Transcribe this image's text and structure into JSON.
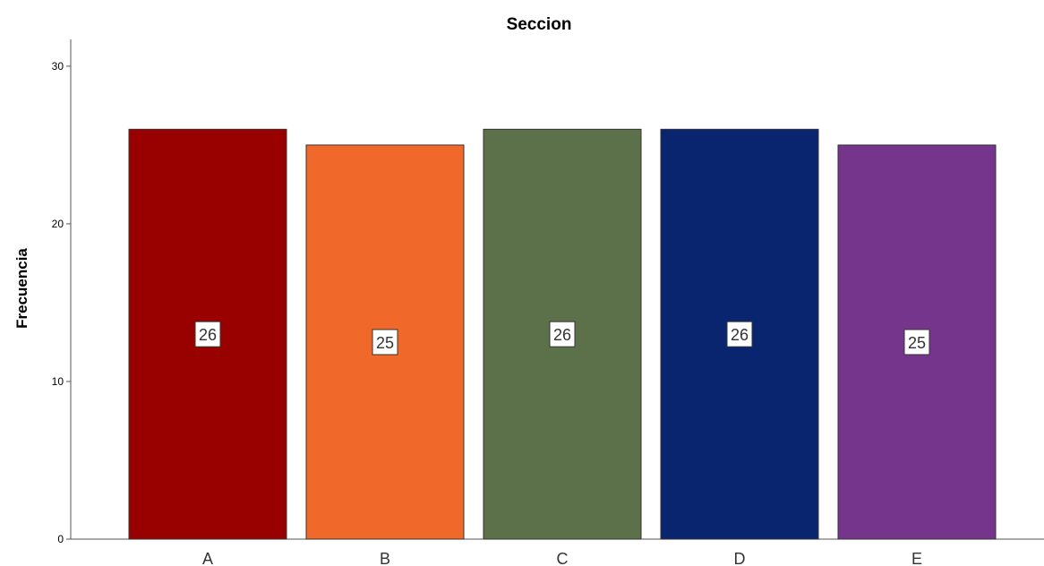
{
  "chart_data": {
    "type": "bar",
    "title": "Seccion",
    "xlabel": "",
    "ylabel": "Frecuencia",
    "categories": [
      "A",
      "B",
      "C",
      "D",
      "E"
    ],
    "values": [
      26,
      25,
      26,
      26,
      25
    ],
    "data_labels": [
      "26",
      "25",
      "26",
      "26",
      "25"
    ],
    "colors": [
      "#990000",
      "#f1682b",
      "#5c704a",
      "#0a2570",
      "#75358c"
    ],
    "ylim": [
      0,
      31.7
    ],
    "yticks": [
      0,
      10,
      20,
      30
    ],
    "grid": false,
    "legend": "none"
  }
}
